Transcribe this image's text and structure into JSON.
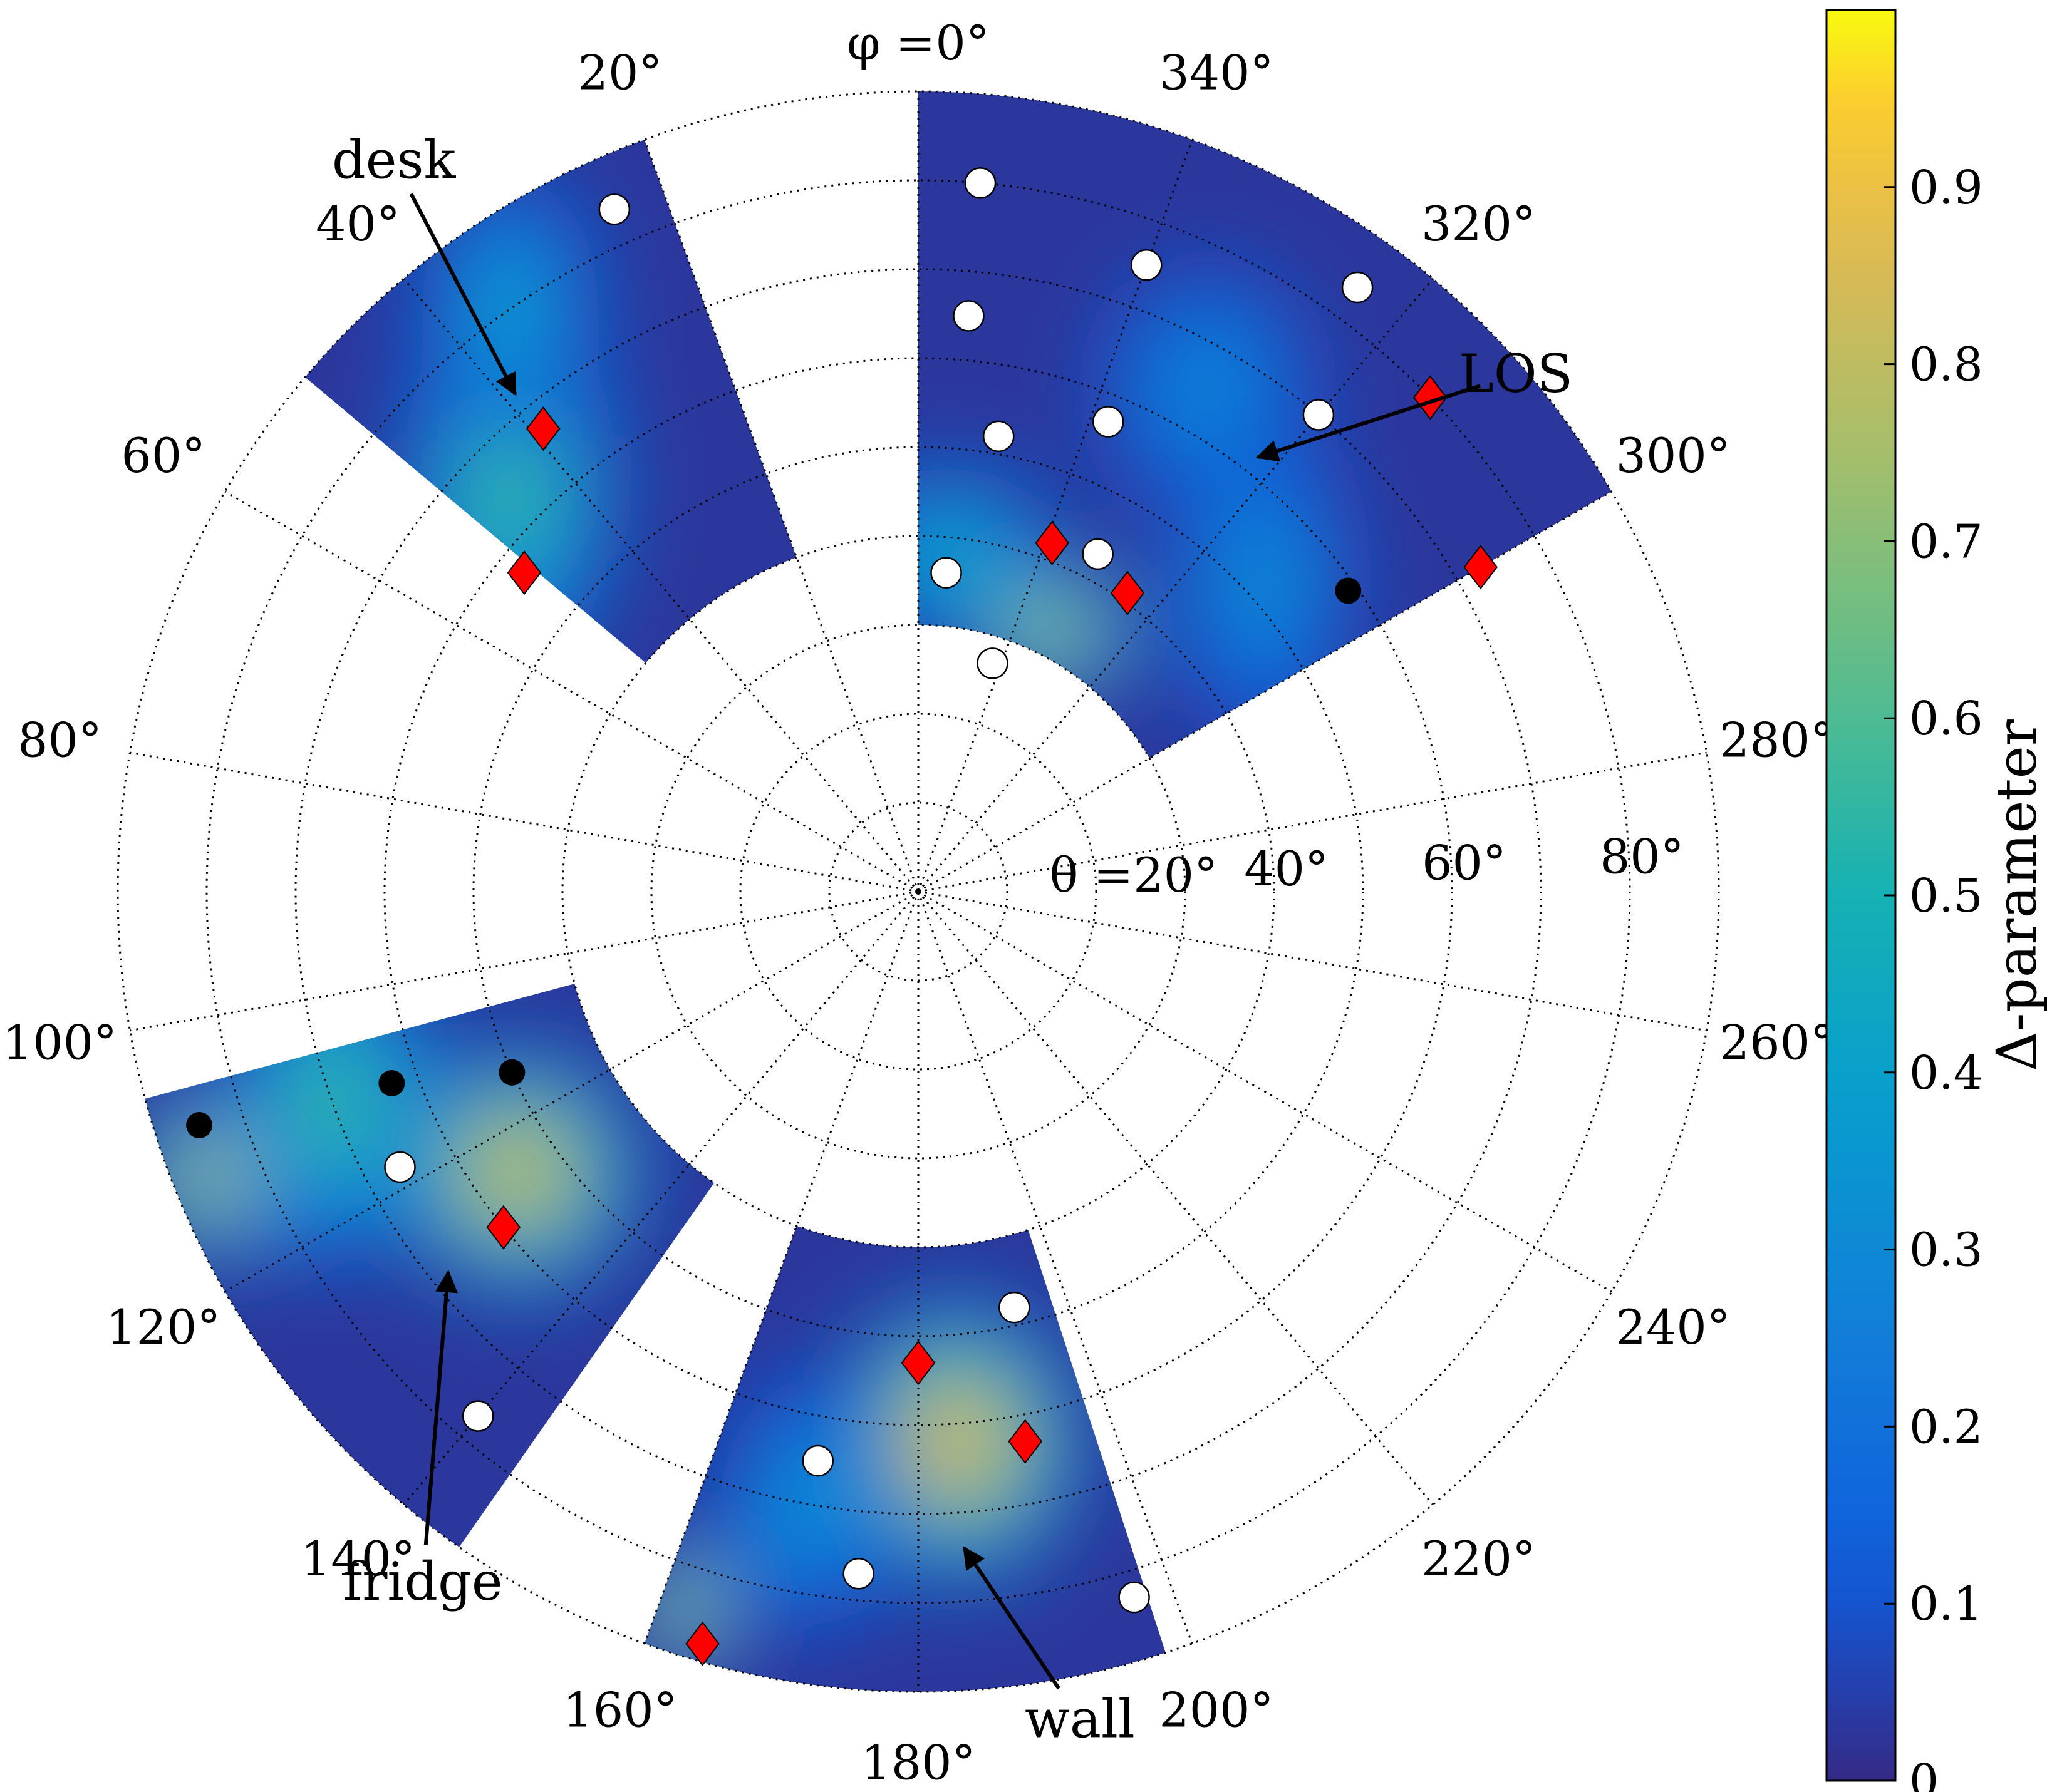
{
  "chart_data": {
    "type": "heatmap",
    "subtype": "polar",
    "colormap": "parula",
    "colorbar": {
      "label": "Δ-parameter",
      "ticks": [
        0,
        0.1,
        0.2,
        0.3,
        0.4,
        0.5,
        0.6,
        0.7,
        0.8,
        0.9
      ],
      "tick_labels": [
        "0",
        "0.1",
        "0.2",
        "0.3",
        "0.4",
        "0.5",
        "0.6",
        "0.7",
        "0.8",
        "0.9"
      ],
      "range": [
        0,
        1
      ]
    },
    "theta_axis": {
      "label_prefix": "θ =",
      "ticks": [
        20,
        40,
        60,
        80
      ],
      "tick_labels": [
        "20°",
        "40°",
        "60°",
        "80°"
      ],
      "range": [
        0,
        90
      ]
    },
    "phi_axis": {
      "label_prefix": "φ =",
      "direction": "clockwise-decreasing",
      "zero_at": "top",
      "ticks": [
        0,
        20,
        40,
        60,
        80,
        100,
        120,
        140,
        160,
        180,
        200,
        220,
        240,
        260,
        280,
        300,
        320,
        340
      ],
      "tick_labels": [
        "0°",
        "20°",
        "40°",
        "60°",
        "80°",
        "100°",
        "120°",
        "140°",
        "160°",
        "180°",
        "200°",
        "220°",
        "240°",
        "260°",
        "280°",
        "300°",
        "320°",
        "340°"
      ]
    },
    "sectors": [
      {
        "name": "LOS",
        "phi_range": [
          300,
          360
        ],
        "theta_range": [
          30,
          90
        ],
        "blobs": [
          {
            "phi": 355,
            "theta": 38,
            "value": 0.45,
            "width": 12,
            "height": 10
          },
          {
            "phi": 333,
            "theta": 33,
            "value": 0.75,
            "width": 10,
            "height": 8
          },
          {
            "phi": 330,
            "theta": 65,
            "value": 0.3,
            "width": 12,
            "height": 14
          },
          {
            "phi": 312,
            "theta": 52,
            "value": 0.32,
            "width": 10,
            "height": 18
          }
        ]
      },
      {
        "name": "desk",
        "phi_range": [
          20,
          50
        ],
        "theta_range": [
          40,
          90
        ],
        "blobs": [
          {
            "phi": 45,
            "theta": 65,
            "value": 0.55,
            "width": 12,
            "height": 22
          },
          {
            "phi": 35,
            "theta": 80,
            "value": 0.4,
            "width": 10,
            "height": 15
          }
        ]
      },
      {
        "name": "fridge",
        "phi_range": [
          105,
          145
        ],
        "theta_range": [
          40,
          90
        ],
        "blobs": [
          {
            "phi": 125,
            "theta": 55,
            "value": 0.82,
            "width": 14,
            "height": 14
          },
          {
            "phi": 112,
            "theta": 85,
            "value": 0.78,
            "width": 10,
            "height": 10
          },
          {
            "phi": 110,
            "theta": 70,
            "value": 0.55,
            "width": 12,
            "height": 18
          }
        ]
      },
      {
        "name": "wall",
        "phi_range": [
          160,
          198
        ],
        "theta_range": [
          40,
          90
        ],
        "blobs": [
          {
            "phi": 184,
            "theta": 62,
            "value": 0.85,
            "width": 14,
            "height": 16
          },
          {
            "phi": 162,
            "theta": 85,
            "value": 0.8,
            "width": 6,
            "height": 8
          },
          {
            "phi": 170,
            "theta": 70,
            "value": 0.35,
            "width": 10,
            "height": 14
          }
        ]
      }
    ],
    "markers": {
      "white_circles": [
        {
          "phi": 355,
          "theta": 80
        },
        {
          "phi": 340,
          "theta": 75
        },
        {
          "phi": 324,
          "theta": 84
        },
        {
          "phi": 355,
          "theta": 65
        },
        {
          "phi": 338,
          "theta": 57
        },
        {
          "phi": 350,
          "theta": 52
        },
        {
          "phi": 320,
          "theta": 70
        },
        {
          "phi": 332,
          "theta": 43
        },
        {
          "phi": 355,
          "theta": 36
        },
        {
          "phi": 342,
          "theta": 27
        },
        {
          "phi": 24,
          "theta": 84
        },
        {
          "phi": 118,
          "theta": 66
        },
        {
          "phi": 140,
          "theta": 77
        },
        {
          "phi": 193,
          "theta": 48
        },
        {
          "phi": 170,
          "theta": 65
        },
        {
          "phi": 175,
          "theta": 77
        },
        {
          "phi": 197,
          "theta": 83
        }
      ],
      "black_circles": [
        {
          "phi": 305,
          "theta": 59
        },
        {
          "phi": 108,
          "theta": 85
        },
        {
          "phi": 110,
          "theta": 63
        },
        {
          "phi": 114,
          "theta": 50
        }
      ],
      "red_diamonds": [
        {
          "phi": 314,
          "theta": 80
        },
        {
          "phi": 300,
          "theta": 73
        },
        {
          "phi": 339,
          "theta": 42
        },
        {
          "phi": 325,
          "theta": 41
        },
        {
          "phi": 39,
          "theta": 67
        },
        {
          "phi": 51,
          "theta": 57
        },
        {
          "phi": 129,
          "theta": 60
        },
        {
          "phi": 180,
          "theta": 53
        },
        {
          "phi": 191,
          "theta": 63
        },
        {
          "phi": 164,
          "theta": 88
        }
      ]
    },
    "annotations": [
      {
        "text": "LOS",
        "arrow_from": {
          "phi": 312,
          "theta": 85
        },
        "arrow_to": {
          "phi": 322,
          "theta": 62
        }
      },
      {
        "text": "desk",
        "arrow_from": {
          "phi": 36,
          "theta": 97
        },
        "arrow_to": {
          "phi": 39,
          "theta": 72
        }
      },
      {
        "text": "fridge",
        "arrow_from": {
          "phi": 143,
          "theta": 92
        },
        "arrow_to": {
          "phi": 129,
          "theta": 68
        }
      },
      {
        "text": "wall",
        "arrow_from": {
          "phi": 190,
          "theta": 91
        },
        "arrow_to": {
          "phi": 184,
          "theta": 74
        }
      }
    ],
    "grid": true
  }
}
